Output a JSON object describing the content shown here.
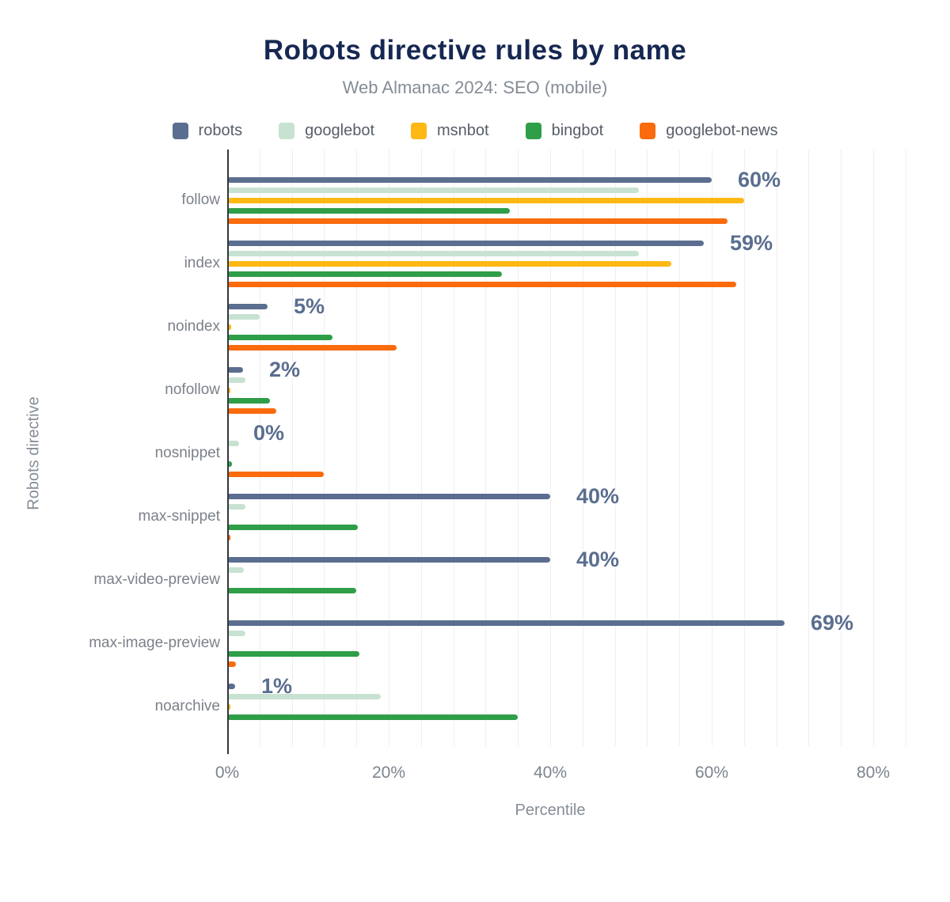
{
  "header": {
    "title": "Robots directive rules by name",
    "subtitle": "Web Almanac 2024: SEO (mobile)"
  },
  "chart_data": {
    "type": "bar",
    "orientation": "horizontal",
    "title": "Robots directive rules by name",
    "subtitle": "Web Almanac 2024: SEO (mobile)",
    "xlabel": "Percentile",
    "ylabel": "Robots directive",
    "xlim": [
      0,
      84
    ],
    "x_ticks": [
      {
        "value": 0,
        "label": "0%"
      },
      {
        "value": 20,
        "label": "20%"
      },
      {
        "value": 40,
        "label": "40%"
      },
      {
        "value": 60,
        "label": "60%"
      },
      {
        "value": 80,
        "label": "80%"
      }
    ],
    "grid_step": 4,
    "grid": true,
    "legend_position": "top",
    "categories": [
      "follow",
      "index",
      "noindex",
      "nofollow",
      "nosnippet",
      "max-snippet",
      "max-video-preview",
      "max-image-preview",
      "noarchive"
    ],
    "series": [
      {
        "name": "robots",
        "color": "#5b6e8f",
        "values": [
          60,
          59,
          5,
          2,
          0,
          40,
          40,
          69,
          1
        ]
      },
      {
        "name": "googlebot",
        "color": "#c8e2d1",
        "values": [
          51,
          51,
          4,
          2.3,
          1.5,
          2.3,
          2.1,
          2.3,
          19
        ]
      },
      {
        "name": "msnbot",
        "color": "#fdb813",
        "values": [
          64,
          55,
          0.5,
          0.4,
          0,
          0,
          0,
          0,
          0.4
        ]
      },
      {
        "name": "bingbot",
        "color": "#2f9e48",
        "values": [
          35,
          34,
          13,
          5.3,
          0.6,
          16.2,
          16,
          16.4,
          36
        ]
      },
      {
        "name": "googlebot-news",
        "color": "#fa6b0d",
        "values": [
          62,
          63,
          21,
          6.1,
          12,
          0.3,
          0,
          1.1,
          0
        ]
      }
    ],
    "data_labels": {
      "series": "robots",
      "values": [
        "60%",
        "59%",
        "5%",
        "2%",
        "0%",
        "40%",
        "40%",
        "69%",
        "1%"
      ]
    }
  },
  "colors": {
    "title": "#162852",
    "subtitle": "#858c96",
    "value_label": "#5b6e8f",
    "axis_line": "#32363c",
    "gridline": "#efefef",
    "category_label": "#7b818a",
    "tick_label": "#7d848e"
  }
}
